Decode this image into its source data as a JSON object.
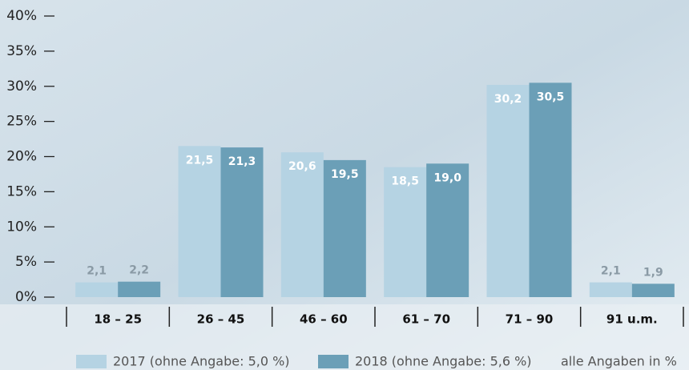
{
  "chart_data": {
    "type": "bar",
    "categories": [
      "18 – 25",
      "26 – 45",
      "46 – 60",
      "61 – 70",
      "71 – 90",
      "91 u.m."
    ],
    "series": [
      {
        "name": "2017 (ohne Angabe: 5,0 %)",
        "color": "#b5d3e3",
        "values": [
          2.1,
          21.5,
          20.6,
          18.5,
          30.2,
          2.1
        ],
        "value_labels": [
          "2,1",
          "21,5",
          "20,6",
          "18,5",
          "30,2",
          "2,1"
        ]
      },
      {
        "name": "2018 (ohne Angabe: 5,6 %)",
        "color": "#6b9fb7",
        "values": [
          2.2,
          21.3,
          19.5,
          19.0,
          30.5,
          1.9
        ],
        "value_labels": [
          "2,2",
          "21,3",
          "19,5",
          "19,0",
          "30,5",
          "1,9"
        ]
      }
    ],
    "ylim": [
      0,
      40
    ],
    "yticks": [
      {
        "value": 0,
        "label": "0%"
      },
      {
        "value": 5,
        "label": "5%"
      },
      {
        "value": 10,
        "label": "10%"
      },
      {
        "value": 15,
        "label": "15%"
      },
      {
        "value": 20,
        "label": "20%"
      },
      {
        "value": 25,
        "label": "25%"
      },
      {
        "value": 30,
        "label": "30%"
      },
      {
        "value": 35,
        "label": "35%"
      },
      {
        "value": 40,
        "label": "40%"
      }
    ],
    "annotation": "alle Angaben in %"
  }
}
